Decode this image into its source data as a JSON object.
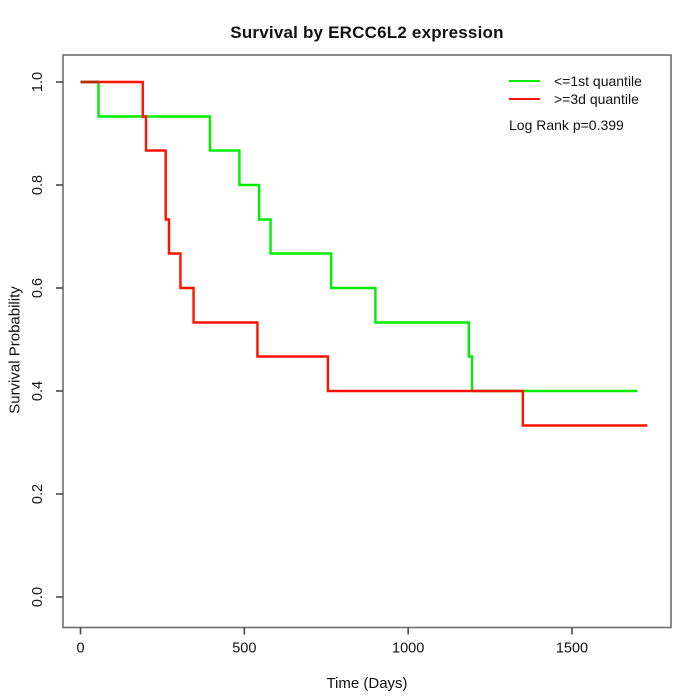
{
  "title": "Survival by ERCC6L2 expression",
  "chart_data": {
    "type": "line",
    "subtype": "kaplan-meier-step",
    "title": "Survival by ERCC6L2 expression",
    "xlabel": "Time (Days)",
    "ylabel": "Survival Probability",
    "xlim": [
      0,
      1760
    ],
    "ylim": [
      0.0,
      1.0
    ],
    "grid": "off",
    "legend_position": "top-right",
    "annotation": "Log Rank p=0.399",
    "x_ticks": {
      "values": [
        0,
        500,
        1000,
        1500
      ],
      "labels": [
        "0",
        "500",
        "1000",
        "1500"
      ]
    },
    "y_ticks": {
      "values": [
        0.0,
        0.2,
        0.4,
        0.6,
        0.8,
        1.0
      ],
      "labels": [
        "0.0",
        "0.2",
        "0.4",
        "0.6",
        "0.8",
        "1.0"
      ]
    },
    "series": [
      {
        "name": "<=1st quantile",
        "color": "#00ee00",
        "times": [
          0,
          55,
          395,
          485,
          545,
          580,
          765,
          900,
          1185,
          1195
        ],
        "survival": [
          1.0,
          0.933,
          0.867,
          0.8,
          0.733,
          0.667,
          0.6,
          0.533,
          0.467,
          0.4
        ],
        "end_time": 1700,
        "end_survival": 0.4
      },
      {
        "name": ">=3d quantile",
        "color": "#ff1100",
        "times": [
          0,
          190,
          200,
          260,
          270,
          305,
          345,
          540,
          755,
          1350
        ],
        "survival": [
          1.0,
          0.933,
          0.867,
          0.733,
          0.667,
          0.6,
          0.533,
          0.467,
          0.4,
          0.333
        ],
        "end_time": 1730,
        "end_survival": 0.333
      }
    ],
    "overlap_segment": {
      "at_survival": 1.0,
      "from_time": 0,
      "to_time": 55,
      "color": "#b23000"
    }
  },
  "style_colors": {
    "axis_box": "#6e6e6e",
    "tick": "#4a4a4a",
    "text": "#111111",
    "background": "#ffffff"
  }
}
